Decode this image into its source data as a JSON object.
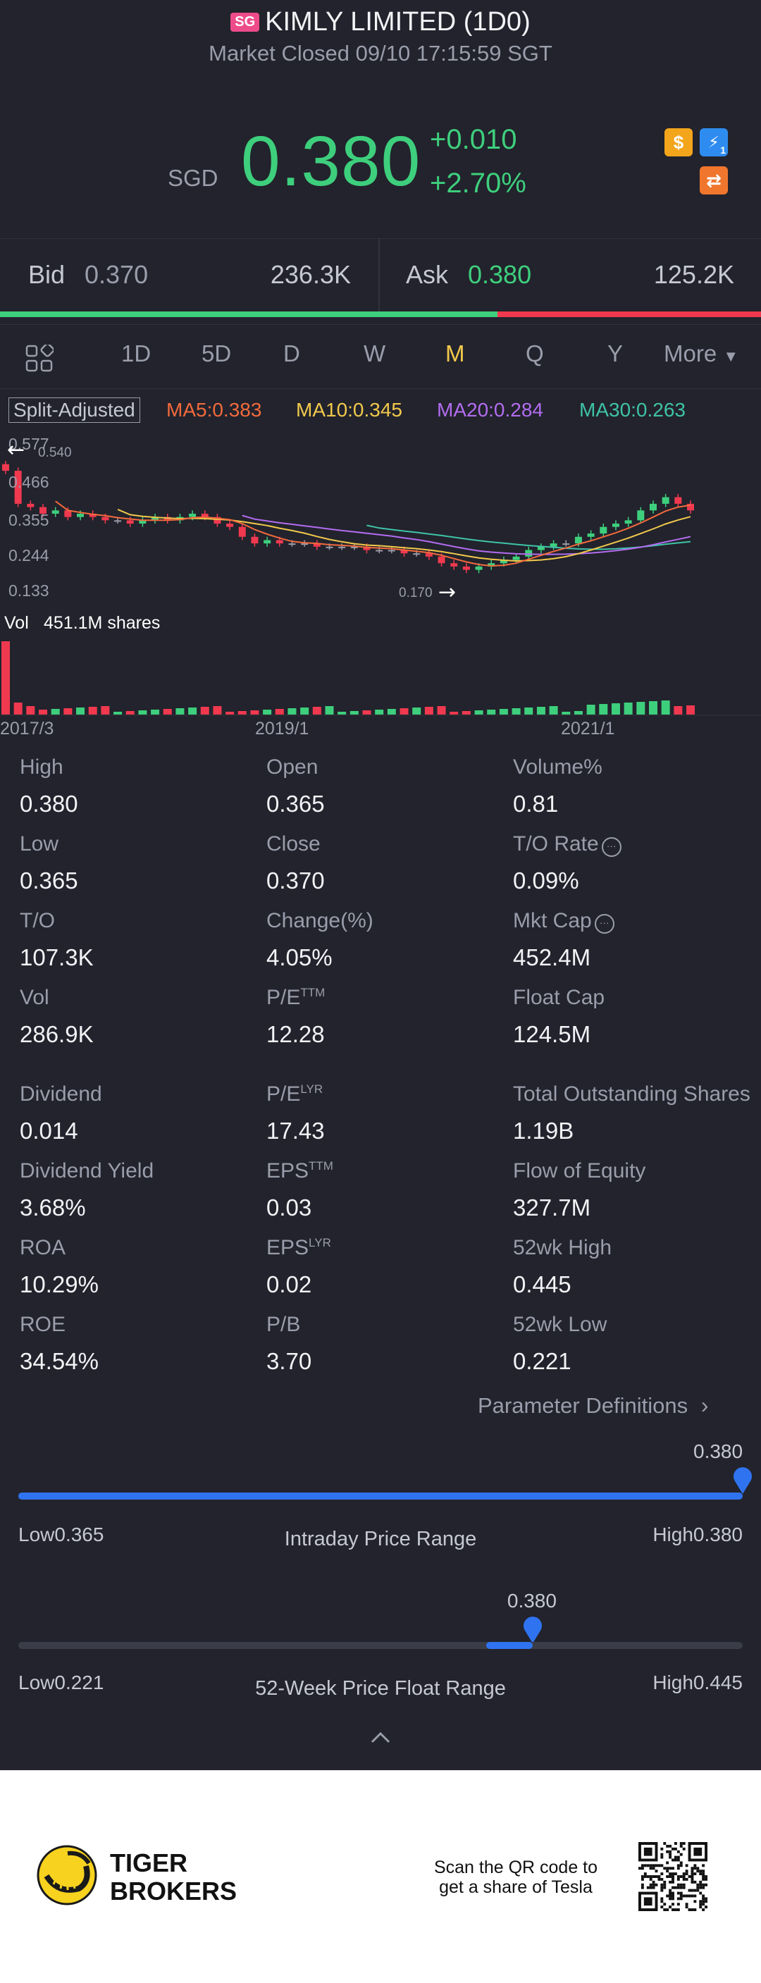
{
  "header": {
    "market_badge": "SG",
    "title": "KIMLY LIMITED (1D0)",
    "status": "Market Closed 09/10 17:15:59 SGT",
    "currency": "SGD",
    "price": "0.380",
    "change_abs": "+0.010",
    "change_pct": "+2.70%",
    "icons": [
      "dollar-icon",
      "lightning-icon",
      "swap-icon"
    ],
    "lightning_badge": "1"
  },
  "bidask": {
    "bid_label": "Bid",
    "bid_price": "0.370",
    "bid_size": "236.3K",
    "ask_label": "Ask",
    "ask_price": "0.380",
    "ask_size": "125.2K",
    "bid_ratio": 0.654,
    "colors": {
      "bid": "#3ecf7d",
      "ask": "#f0394f"
    }
  },
  "tabs": {
    "items": [
      "1D",
      "5D",
      "D",
      "W",
      "M",
      "Q",
      "Y"
    ],
    "active": "M",
    "more_label": "More"
  },
  "chart": {
    "split_label": "Split-Adjusted",
    "ma5": "MA5:0.383",
    "ma10": "MA10:0.345",
    "ma20": "MA20:0.284",
    "ma30": "MA30:0.263",
    "y_ticks": [
      "0.577",
      "0.466",
      "0.355",
      "0.244",
      "0.133"
    ],
    "max_label": "0.540",
    "min_label": "0.170",
    "vol_label": "Vol",
    "vol_value": "451.1M shares",
    "x_ticks": [
      "2017/3",
      "2019/1",
      "2021/1"
    ],
    "colors": {
      "up": "#3ecf7d",
      "down": "#f0394f",
      "ma5": "#f26a3d",
      "ma10": "#f2c94c",
      "ma20": "#b36cf0",
      "ma30": "#3fc3a8"
    }
  },
  "stats": [
    {
      "label": "High",
      "value": "0.380"
    },
    {
      "label": "Open",
      "value": "0.365"
    },
    {
      "label": "Volume%",
      "value": "0.81"
    },
    {
      "label": "Low",
      "value": "0.365"
    },
    {
      "label": "Close",
      "value": "0.370"
    },
    {
      "label": "T/O Rate",
      "value": "0.09%"
    },
    {
      "label": "T/O",
      "value": "107.3K"
    },
    {
      "label": "Change(%)",
      "value": "4.05%"
    },
    {
      "label": "Mkt Cap",
      "value": "452.4M"
    },
    {
      "label": "Vol",
      "value": "286.9K"
    },
    {
      "label": "P/E",
      "sup": "TTM",
      "value": "12.28"
    },
    {
      "label": "Float Cap",
      "value": "124.5M"
    },
    {
      "label": "Dividend",
      "value": "0.014"
    },
    {
      "label": "P/E",
      "sup": "LYR",
      "value": "17.43"
    },
    {
      "label": "Total Outstanding Shares",
      "value": "1.19B"
    },
    {
      "label": "Dividend Yield",
      "value": "3.68%"
    },
    {
      "label": "EPS",
      "sup": "TTM",
      "value": "0.03"
    },
    {
      "label": "Flow of Equity",
      "value": "327.7M"
    },
    {
      "label": "ROA",
      "value": "10.29%"
    },
    {
      "label": "EPS",
      "sup": "LYR",
      "value": "0.02"
    },
    {
      "label": "52wk High",
      "value": "0.445"
    },
    {
      "label": "ROE",
      "value": "34.54%"
    },
    {
      "label": "P/B",
      "value": "3.70"
    },
    {
      "label": "52wk Low",
      "value": "0.221"
    }
  ],
  "param_defs": "Parameter Definitions",
  "intraday": {
    "marker": "0.380",
    "low_prefix": "Low",
    "low": "0.365",
    "title": "Intraday Price Range",
    "high_prefix": "High",
    "high": "0.380",
    "fill_fraction": 1.0
  },
  "week52": {
    "marker": "0.380",
    "low_prefix": "Low",
    "low": "0.221",
    "title": "52-Week Price Float Range",
    "high_prefix": "High",
    "high": "0.445",
    "fill_fraction": 0.71
  },
  "footer": {
    "brand_line1": "TIGER",
    "brand_line2": "BROKERS",
    "qr_line1": "Scan the QR code to",
    "qr_line2": "get a share of Tesla"
  }
}
